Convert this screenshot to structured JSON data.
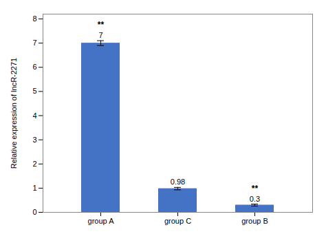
{
  "chart_data": {
    "type": "bar",
    "categories": [
      "group A",
      "group C",
      "group B"
    ],
    "values": [
      7.0,
      0.98,
      0.3
    ],
    "errors": [
      0.1,
      0.05,
      0.04
    ],
    "significance": [
      "**",
      null,
      "**"
    ],
    "color": "#4472C4",
    "ylabel": "Relative expression of lncR-2271",
    "ylim": [
      0,
      8.2
    ],
    "yticks": [
      0,
      1,
      2,
      3,
      4,
      5,
      6,
      7,
      8
    ],
    "grid": false,
    "data_labels": true
  }
}
